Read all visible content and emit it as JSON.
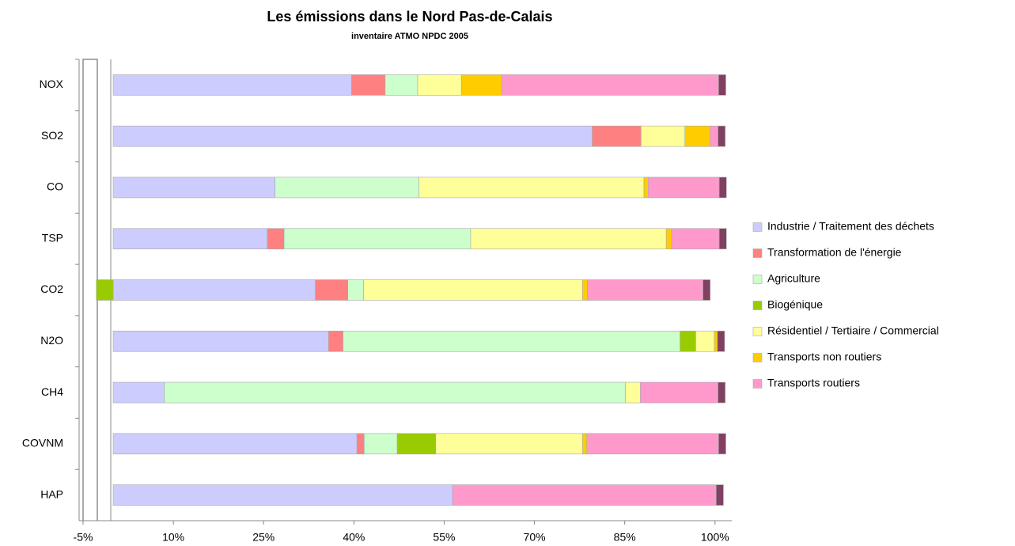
{
  "chart_data": {
    "type": "stacked-barh",
    "title": "Les émissions dans le Nord Pas-de-Calais",
    "subtitle": "inventaire ATMO NPDC 2005",
    "categories": [
      "NOX",
      "SO2",
      "CO",
      "TSP",
      "CO2",
      "N2O",
      "CH4",
      "COVNM",
      "HAP"
    ],
    "series": [
      {
        "name": "Industrie / Traitement des déchets",
        "color": "#ccccff",
        "values": [
          39.6,
          79.6,
          26.9,
          25.6,
          33.6,
          35.8,
          8.5,
          40.5,
          56.4
        ]
      },
      {
        "name": "Transformation de l'énergie",
        "color": "#ff8080",
        "values": [
          5.6,
          8.1,
          0,
          2.8,
          5.4,
          2.4,
          0,
          1.2,
          0
        ]
      },
      {
        "name": "Agriculture",
        "color": "#ccffcc",
        "values": [
          5.4,
          0,
          23.9,
          31,
          2.6,
          56,
          76.6,
          5.5,
          0
        ]
      },
      {
        "name": "Biogénique",
        "color": "#99cc00",
        "values": [
          0,
          0,
          0,
          0,
          -2.8,
          2.6,
          0,
          6.4,
          0
        ]
      },
      {
        "name": "Résidentiel / Tertiaire / Commercial",
        "color": "#ffff99",
        "values": [
          7.3,
          7.3,
          37.4,
          32.5,
          36.4,
          3.1,
          2.5,
          24.4,
          0
        ]
      },
      {
        "name": "Transports non routiers",
        "color": "#ffcc00",
        "values": [
          6.7,
          4.2,
          0.7,
          0.9,
          0.8,
          0.5,
          0,
          0.7,
          0
        ]
      },
      {
        "name": "Transports routiers",
        "color": "#ff99cc",
        "values": [
          36,
          1.3,
          11.8,
          7.9,
          19.2,
          0,
          12.9,
          21.9,
          43.8
        ]
      },
      {
        "name": null,
        "color": "#804060",
        "values": [
          1.2,
          1.2,
          1.2,
          1.2,
          1.2,
          1.2,
          1.2,
          1.2,
          1.2
        ]
      }
    ],
    "xlim": [
      -5,
      102
    ],
    "xticks": [
      {
        "value": -5,
        "label": "-5%"
      },
      {
        "value": 10,
        "label": "10%"
      },
      {
        "value": 25,
        "label": "25%"
      },
      {
        "value": 40,
        "label": "40%"
      },
      {
        "value": 55,
        "label": "55%"
      },
      {
        "value": 70,
        "label": "70%"
      },
      {
        "value": 85,
        "label": "85%"
      },
      {
        "value": 100,
        "label": "100%"
      }
    ],
    "grid": false,
    "legend": "right"
  }
}
